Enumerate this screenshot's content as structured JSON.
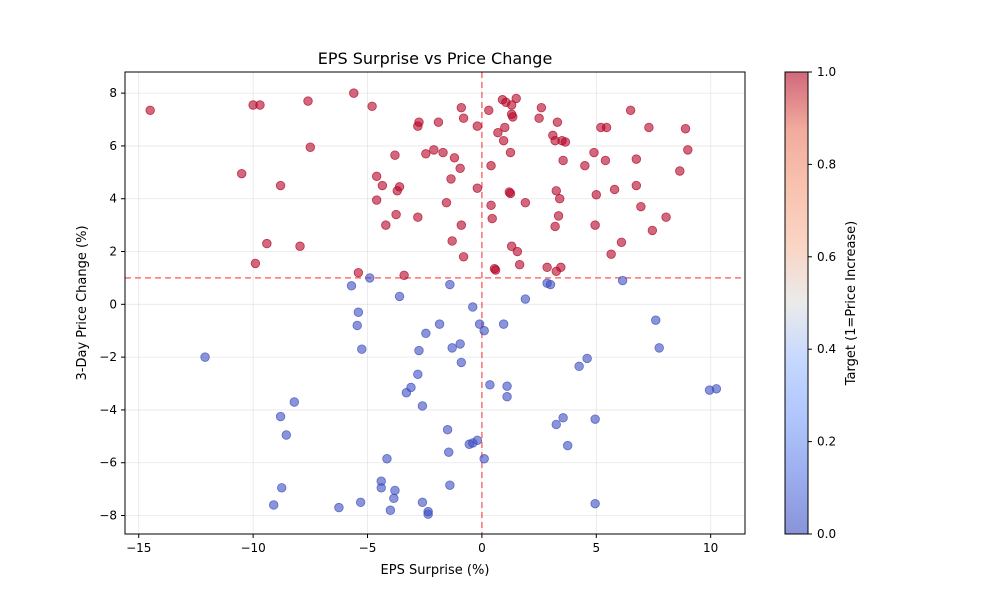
{
  "chart_data": {
    "type": "scatter",
    "title": "EPS Surprise vs Price Change",
    "xlabel": "EPS Surprise (%)",
    "ylabel": "3-Day Price Change (%)",
    "xlim": [
      -15.6,
      11.5
    ],
    "ylim": [
      -8.7,
      8.8
    ],
    "xticks": [
      -15,
      -10,
      -5,
      0,
      5,
      10
    ],
    "yticks": [
      -8,
      -6,
      -4,
      -2,
      0,
      2,
      4,
      6,
      8
    ],
    "grid": true,
    "threshold_lines": {
      "vertical_x": 0,
      "horizontal_y": 1,
      "color": "#ff4d4d",
      "style": "dashed"
    },
    "colorbar": {
      "label": "Target (1=Price Increase)",
      "colormap": "coolwarm",
      "range": [
        0,
        1
      ],
      "ticks": [
        "0.0",
        "0.2",
        "0.4",
        "0.6",
        "0.8",
        "1.0"
      ]
    },
    "series": [
      {
        "target": 1,
        "color": "#b40426",
        "points": [
          [
            -14.5,
            7.35
          ],
          [
            -10.0,
            7.55
          ],
          [
            -9.7,
            7.55
          ],
          [
            -7.6,
            7.7
          ],
          [
            -5.6,
            8.0
          ],
          [
            -4.8,
            7.5
          ],
          [
            -0.9,
            7.45
          ],
          [
            0.3,
            7.35
          ],
          [
            0.9,
            7.75
          ],
          [
            1.05,
            7.65
          ],
          [
            1.5,
            7.8
          ],
          [
            2.6,
            7.45
          ],
          [
            6.5,
            7.35
          ],
          [
            -0.8,
            7.05
          ],
          [
            -2.8,
            6.75
          ],
          [
            -2.75,
            6.9
          ],
          [
            -1.9,
            6.9
          ],
          [
            1.3,
            7.2
          ],
          [
            1.3,
            7.55
          ],
          [
            1.35,
            7.1
          ],
          [
            2.5,
            7.05
          ],
          [
            3.3,
            6.9
          ],
          [
            5.2,
            6.7
          ],
          [
            5.45,
            6.7
          ],
          [
            7.3,
            6.7
          ],
          [
            8.9,
            6.65
          ],
          [
            -7.5,
            5.95
          ],
          [
            -0.2,
            6.75
          ],
          [
            0.7,
            6.5
          ],
          [
            1.0,
            6.7
          ],
          [
            0.95,
            6.2
          ],
          [
            3.1,
            6.4
          ],
          [
            3.2,
            6.2
          ],
          [
            3.5,
            6.2
          ],
          [
            3.65,
            6.15
          ],
          [
            -3.8,
            5.65
          ],
          [
            -2.45,
            5.7
          ],
          [
            -2.1,
            5.85
          ],
          [
            -1.7,
            5.75
          ],
          [
            -1.2,
            5.55
          ],
          [
            1.25,
            5.75
          ],
          [
            4.9,
            5.75
          ],
          [
            9.0,
            5.85
          ],
          [
            -10.5,
            4.95
          ],
          [
            -4.6,
            4.85
          ],
          [
            -0.95,
            5.15
          ],
          [
            0.4,
            5.25
          ],
          [
            3.55,
            5.45
          ],
          [
            4.5,
            5.25
          ],
          [
            5.4,
            5.45
          ],
          [
            6.75,
            5.5
          ],
          [
            8.65,
            5.05
          ],
          [
            -8.8,
            4.5
          ],
          [
            -4.35,
            4.5
          ],
          [
            -3.6,
            4.45
          ],
          [
            -3.7,
            4.3
          ],
          [
            -1.35,
            4.75
          ],
          [
            -0.2,
            4.4
          ],
          [
            1.2,
            4.25
          ],
          [
            1.25,
            4.2
          ],
          [
            3.25,
            4.3
          ],
          [
            5.0,
            4.15
          ],
          [
            5.8,
            4.35
          ],
          [
            6.75,
            4.5
          ],
          [
            -4.6,
            3.95
          ],
          [
            -1.55,
            3.85
          ],
          [
            0.4,
            3.75
          ],
          [
            1.9,
            3.85
          ],
          [
            3.4,
            4.0
          ],
          [
            6.95,
            3.7
          ],
          [
            -3.75,
            3.4
          ],
          [
            -2.8,
            3.3
          ],
          [
            -4.2,
            3.0
          ],
          [
            -0.9,
            3.0
          ],
          [
            0.45,
            3.25
          ],
          [
            3.2,
            2.95
          ],
          [
            3.35,
            3.35
          ],
          [
            4.95,
            3.0
          ],
          [
            7.45,
            2.8
          ],
          [
            8.05,
            3.3
          ],
          [
            -9.4,
            2.3
          ],
          [
            -7.95,
            2.2
          ],
          [
            -1.3,
            2.4
          ],
          [
            1.3,
            2.2
          ],
          [
            1.55,
            2.0
          ],
          [
            5.65,
            1.9
          ],
          [
            6.1,
            2.35
          ],
          [
            -9.9,
            1.55
          ],
          [
            -0.8,
            1.8
          ],
          [
            1.65,
            1.5
          ],
          [
            -5.4,
            1.2
          ],
          [
            -3.4,
            1.1
          ],
          [
            0.55,
            1.35
          ],
          [
            0.6,
            1.3
          ],
          [
            2.85,
            1.4
          ],
          [
            3.25,
            1.25
          ],
          [
            3.45,
            1.4
          ]
        ]
      },
      {
        "target": 0,
        "color": "#3b4cc0",
        "points": [
          [
            -4.9,
            1.0
          ],
          [
            -5.7,
            0.7
          ],
          [
            -1.4,
            0.75
          ],
          [
            2.85,
            0.8
          ],
          [
            3.0,
            0.75
          ],
          [
            6.15,
            0.9
          ],
          [
            -3.6,
            0.3
          ],
          [
            1.9,
            0.2
          ],
          [
            -0.4,
            -0.1
          ],
          [
            -5.4,
            -0.3
          ],
          [
            -5.45,
            -0.8
          ],
          [
            -1.85,
            -0.75
          ],
          [
            -0.1,
            -0.75
          ],
          [
            0.1,
            -1.0
          ],
          [
            0.95,
            -0.75
          ],
          [
            7.6,
            -0.6
          ],
          [
            -2.45,
            -1.1
          ],
          [
            -5.25,
            -1.7
          ],
          [
            -2.75,
            -1.75
          ],
          [
            -1.3,
            -1.65
          ],
          [
            -0.95,
            -1.5
          ],
          [
            7.75,
            -1.65
          ],
          [
            -12.1,
            -2.0
          ],
          [
            -0.9,
            -2.2
          ],
          [
            4.6,
            -2.05
          ],
          [
            4.25,
            -2.35
          ],
          [
            -2.8,
            -2.65
          ],
          [
            -3.1,
            -3.15
          ],
          [
            -3.3,
            -3.35
          ],
          [
            0.35,
            -3.05
          ],
          [
            1.1,
            -3.1
          ],
          [
            1.1,
            -3.5
          ],
          [
            9.95,
            -3.25
          ],
          [
            10.25,
            -3.2
          ],
          [
            -8.2,
            -3.7
          ],
          [
            -2.6,
            -3.85
          ],
          [
            -8.8,
            -4.25
          ],
          [
            3.55,
            -4.3
          ],
          [
            4.95,
            -4.35
          ],
          [
            3.25,
            -4.55
          ],
          [
            -1.5,
            -4.75
          ],
          [
            -8.55,
            -4.95
          ],
          [
            -0.55,
            -5.3
          ],
          [
            -0.4,
            -5.25
          ],
          [
            -0.2,
            -5.15
          ],
          [
            3.75,
            -5.35
          ],
          [
            -1.45,
            -5.6
          ],
          [
            -4.15,
            -5.85
          ],
          [
            0.1,
            -5.85
          ],
          [
            -4.4,
            -6.7
          ],
          [
            -4.4,
            -6.95
          ],
          [
            -1.4,
            -6.85
          ],
          [
            -8.75,
            -6.95
          ],
          [
            -3.8,
            -7.05
          ],
          [
            -3.85,
            -7.35
          ],
          [
            -9.1,
            -7.6
          ],
          [
            -5.3,
            -7.5
          ],
          [
            -2.6,
            -7.5
          ],
          [
            4.95,
            -7.55
          ],
          [
            -6.25,
            -7.7
          ],
          [
            -4.0,
            -7.8
          ],
          [
            -2.35,
            -7.85
          ],
          [
            -2.35,
            -7.95
          ]
        ]
      }
    ]
  }
}
